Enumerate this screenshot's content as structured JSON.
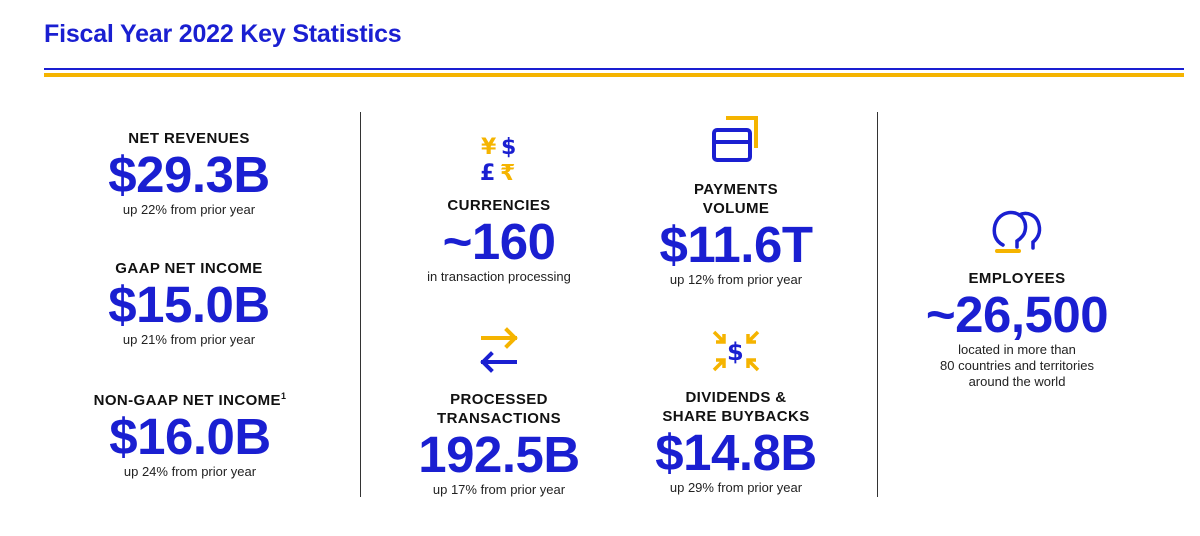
{
  "title": "Fiscal Year 2022 Key Statistics",
  "colors": {
    "accent_blue": "#1a1fd1",
    "accent_gold": "#f5b400"
  },
  "stats": {
    "net_revenues": {
      "label": "NET REVENUES",
      "value": "$29.3B",
      "note": "up 22% from prior year"
    },
    "gaap_net_income": {
      "label": "GAAP NET INCOME",
      "value": "$15.0B",
      "note": "up 21% from prior year"
    },
    "non_gaap_net_income": {
      "label": "NON-GAAP NET INCOME",
      "footnote": "1",
      "value": "$16.0B",
      "note": "up 24% from prior year"
    },
    "currencies": {
      "icon": "currency-symbols-icon",
      "label": "CURRENCIES",
      "value": "~160",
      "note": "in transaction processing"
    },
    "payments_volume": {
      "icon": "payment-card-icon",
      "label_line1": "PAYMENTS",
      "label_line2": "VOLUME",
      "value": "$11.6T",
      "note": "up 12% from prior year"
    },
    "processed_transactions": {
      "icon": "exchange-arrows-icon",
      "label_line1": "PROCESSED",
      "label_line2": "TRANSACTIONS",
      "value": "192.5B",
      "note": "up 17% from prior year"
    },
    "dividends_buybacks": {
      "icon": "dollar-arrows-icon",
      "label_line1": "DIVIDENDS &",
      "label_line2": "SHARE BUYBACKS",
      "value": "$14.8B",
      "note": "up 29% from prior year"
    },
    "employees": {
      "icon": "people-icon",
      "label": "EMPLOYEES",
      "value": "~26,500",
      "note_line1": "located in more than",
      "note_line2": "80 countries and territories",
      "note_line3": "around the world"
    }
  },
  "icon_glyphs": {
    "yen": "¥",
    "dollar": "$",
    "pound": "£",
    "rupee": "₹"
  }
}
